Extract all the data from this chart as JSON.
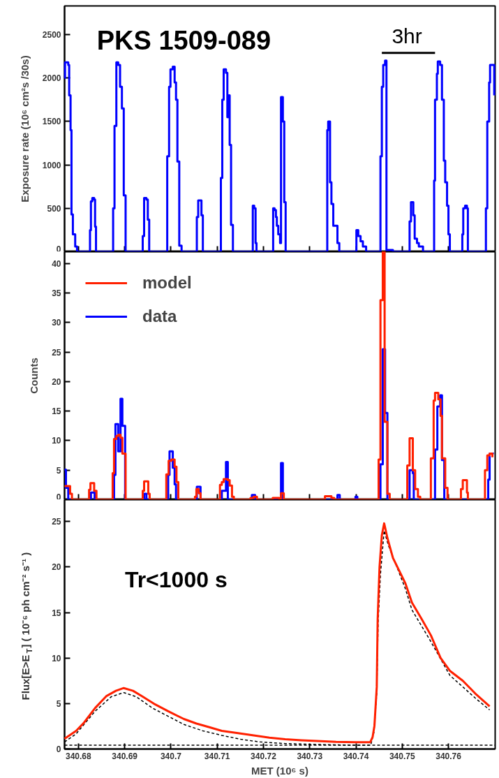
{
  "chart_data": [
    {
      "type": "step",
      "ylabel": "Exposure rate (10⁶ cm²s /30s)",
      "annotations": [
        "PKS 1509-089",
        "3hr"
      ],
      "xlim": [
        340.677,
        340.7701
      ],
      "ylim": [
        0,
        2830
      ],
      "xticks": [
        340.68,
        340.69,
        340.7,
        340.71,
        340.72,
        340.73,
        340.74,
        340.75,
        340.76
      ],
      "yticks": [
        0,
        500,
        1000,
        1500,
        2000,
        2500
      ],
      "tick_labels": "y",
      "grid": false,
      "series": [
        {
          "type": "line",
          "color": "#000000",
          "x": [
            340.7456,
            340.7571
          ],
          "values": [
            2290,
            2290
          ]
        },
        {
          "color": "#0000ff",
          "x": [
            340.677,
            340.6771,
            340.6778,
            340.678,
            340.6783,
            340.6785,
            340.6788,
            340.6793,
            340.6797,
            340.6823,
            340.6825,
            340.6827,
            340.683,
            340.6834,
            340.6836,
            340.6838,
            340.6874,
            340.6875,
            340.6878,
            340.6882,
            340.6886,
            340.689,
            340.6894,
            340.6898,
            340.6902,
            340.6937,
            340.6939,
            340.6942,
            340.6947,
            340.695,
            340.6953,
            340.699,
            340.6992,
            340.6996,
            340.6999,
            340.7004,
            340.7008,
            340.7011,
            340.7014,
            340.7018,
            340.7023,
            340.7054,
            340.7056,
            340.7059,
            340.7064,
            340.7066,
            340.7069,
            340.7106,
            340.7108,
            340.7111,
            340.7114,
            340.7119,
            340.7122,
            340.7125,
            340.7127,
            340.713,
            340.7134,
            340.7175,
            340.7177,
            340.718,
            340.7183,
            340.7185,
            340.722,
            340.7221,
            340.7224,
            340.7227,
            340.7229,
            340.7232,
            340.7236,
            340.7238,
            340.7242,
            340.7245,
            340.7248,
            340.7336,
            340.7338,
            340.734,
            340.7344,
            340.7347,
            340.7351,
            340.7356,
            340.736,
            340.7364,
            340.7398,
            340.7401,
            340.7405,
            340.741,
            340.7415,
            340.7422,
            340.7451,
            340.7453,
            340.7456,
            340.7459,
            340.7463,
            340.7466,
            340.748,
            340.7514,
            340.7516,
            340.7519,
            340.7524,
            340.7527,
            340.7532,
            340.7536,
            340.7545,
            340.7566,
            340.7569,
            340.7571,
            340.7575,
            340.7577,
            340.7582,
            340.7586,
            340.759,
            340.7593,
            340.7597,
            340.76,
            340.7603,
            340.7627,
            340.763,
            340.7632,
            340.7636,
            340.764,
            340.7642,
            340.7679,
            340.7681,
            340.7684,
            340.7688,
            340.769,
            340.7696,
            340.7699
          ],
          "values": [
            2000,
            2180,
            2150,
            1800,
            1400,
            430,
            200,
            60,
            0,
            0,
            250,
            580,
            620,
            600,
            290,
            0,
            0,
            500,
            1450,
            2180,
            2150,
            1900,
            1650,
            650,
            0,
            0,
            180,
            620,
            600,
            370,
            0,
            0,
            1100,
            1900,
            2100,
            2130,
            1950,
            1750,
            1040,
            70,
            0,
            0,
            400,
            590,
            590,
            420,
            0,
            0,
            850,
            1750,
            2100,
            2060,
            1550,
            1800,
            1230,
            310,
            0,
            0,
            530,
            500,
            100,
            0,
            0,
            500,
            480,
            400,
            300,
            200,
            100,
            1780,
            1500,
            570,
            0,
            0,
            1400,
            1500,
            800,
            550,
            300,
            300,
            100,
            0,
            0,
            250,
            180,
            120,
            60,
            0,
            0,
            1100,
            1900,
            2150,
            2200,
            20,
            0,
            0,
            350,
            570,
            420,
            150,
            100,
            60,
            0,
            0,
            820,
            1750,
            2050,
            2190,
            2150,
            1750,
            1050,
            800,
            530,
            200,
            0,
            0,
            200,
            500,
            530,
            500,
            0,
            0,
            500,
            1500,
            1950,
            2150,
            2150,
            1800
          ]
        }
      ]
    },
    {
      "type": "step",
      "ylabel": "Counts",
      "legend": "top left",
      "xlim": [
        340.677,
        340.7701
      ],
      "ylim": [
        0,
        42
      ],
      "xticks": [
        340.68,
        340.69,
        340.7,
        340.71,
        340.72,
        340.73,
        340.74,
        340.75,
        340.76
      ],
      "yticks": [
        0,
        5,
        10,
        15,
        20,
        25,
        30,
        35,
        40
      ],
      "tick_labels": "y",
      "grid": false,
      "series": [
        {
          "name": "data",
          "color": "#0000ff",
          "x": [
            340.677,
            340.6773,
            340.6778,
            340.6827,
            340.6835,
            340.6877,
            340.688,
            340.6886,
            340.6891,
            340.6895,
            340.6901,
            340.6942,
            340.6947,
            340.6994,
            340.6997,
            340.7004,
            340.7008,
            340.7011,
            340.7056,
            340.7064,
            340.711,
            340.7119,
            340.7123,
            340.7175,
            340.7182,
            340.7238,
            340.7242,
            340.736,
            340.7365,
            340.7399,
            340.7403,
            340.7453,
            340.7458,
            340.7463,
            340.7468,
            340.7516,
            340.7523,
            340.7525,
            340.7571,
            340.7576,
            340.7582,
            340.7586,
            340.7591,
            340.7686,
            340.7689,
            340.7696
          ],
          "values": [
            5.1,
            2,
            0,
            1.2,
            0,
            4.2,
            12.8,
            8.2,
            17.1,
            12.5,
            0,
            1,
            0,
            4.2,
            8.2,
            5.4,
            2.6,
            0,
            2.2,
            0,
            1.5,
            6.4,
            0,
            0.8,
            0,
            6.2,
            0,
            0.8,
            0,
            0.5,
            0,
            6,
            25.5,
            14.7,
            0,
            5,
            4.5,
            0,
            8.5,
            15.8,
            17.7,
            6.7,
            0,
            3.4,
            7.8,
            8
          ]
        },
        {
          "name": "model",
          "color": "#ff2000",
          "x": [
            340.677,
            340.6782,
            340.6786,
            340.6823,
            340.6826,
            340.6834,
            340.6839,
            340.6874,
            340.6877,
            340.6882,
            340.6886,
            340.6891,
            340.6895,
            340.6902,
            340.6939,
            340.6942,
            340.6951,
            340.6954,
            340.699,
            340.6995,
            340.7001,
            340.7008,
            340.7012,
            340.7016,
            340.7052,
            340.7055,
            340.706,
            340.7064,
            340.7106,
            340.711,
            340.7114,
            340.7123,
            340.7127,
            340.7132,
            340.7136,
            340.7172,
            340.7179,
            340.7186,
            340.722,
            340.7234,
            340.7238,
            340.7244,
            340.7333,
            340.7347,
            340.7353,
            340.7449,
            340.7453,
            340.7458,
            340.7462,
            340.7468,
            340.7473,
            340.7511,
            340.7516,
            340.7523,
            340.7528,
            340.7534,
            340.7539,
            340.7562,
            340.7568,
            340.7571,
            340.7578,
            340.7583,
            340.7586,
            340.7593,
            340.7598,
            340.7627,
            340.7631,
            340.764,
            340.7642,
            340.7679,
            340.7684,
            340.7689,
            340.7695
          ],
          "values": [
            2.3,
            1,
            0,
            1.7,
            2.8,
            1.5,
            0,
            4.5,
            10.3,
            10.8,
            11,
            10.5,
            7.8,
            0,
            1.5,
            3.1,
            1,
            0,
            4.3,
            6.6,
            6.8,
            5.6,
            3,
            0,
            0.5,
            1.8,
            1.1,
            0,
            2.5,
            3,
            3.5,
            3.3,
            2.4,
            0.5,
            0,
            0.3,
            0.5,
            0,
            0.3,
            0.2,
            1.1,
            0,
            0.6,
            0.3,
            0,
            6.8,
            33.8,
            42,
            13.2,
            1,
            0,
            5.8,
            10.4,
            5,
            1.8,
            0.5,
            0,
            7,
            16.8,
            18.1,
            17,
            14.2,
            7,
            2,
            0,
            1.8,
            3.3,
            1.2,
            0,
            5,
            7.5,
            7.8,
            7.2
          ]
        }
      ]
    },
    {
      "type": "line",
      "xlabel": "MET (10⁶ s)",
      "ylabel": "Flux[E>E$_{T}$] ( 10⁻⁶ ph cm⁻² s⁻¹ )",
      "annotations": [
        "Tr<1000 s"
      ],
      "xlim": [
        340.677,
        340.7701
      ],
      "ylim": [
        0,
        27.4
      ],
      "xticks": [
        340.68,
        340.69,
        340.7,
        340.71,
        340.72,
        340.73,
        340.74,
        340.75,
        340.76
      ],
      "yticks": [
        0,
        5,
        10,
        15,
        20,
        25
      ],
      "grid": false,
      "marker": "none",
      "ref_lines": [
        {
          "axis": "y",
          "value": 0.43,
          "color": "#000000",
          "line_style": "dashed"
        }
      ],
      "series": [
        {
          "color": "#000000",
          "line_style": "dashed",
          "x": [
            340.677,
            340.6795,
            340.6836,
            340.6871,
            340.6898,
            340.6925,
            340.696,
            340.6994,
            340.7028,
            340.7069,
            340.711,
            340.7151,
            340.7192,
            340.7247,
            340.7316,
            340.7384,
            340.7432,
            340.7439,
            340.7445,
            340.7448,
            340.7453,
            340.7461,
            340.747,
            340.7507,
            340.7521,
            340.7562,
            340.7603,
            340.7658,
            340.7689
          ],
          "values": [
            0.78,
            1.67,
            4.15,
            5.75,
            6.2,
            5.75,
            4.5,
            3.6,
            2.7,
            2.0,
            1.5,
            1.07,
            0.78,
            0.6,
            0.5,
            0.43,
            0.43,
            1.85,
            6.1,
            13.9,
            19.2,
            24.0,
            22.4,
            17.6,
            15.3,
            11.8,
            8.1,
            5.6,
            4.3
          ]
        },
        {
          "color": "#ff2000",
          "line_style": "solid",
          "x": [
            340.677,
            340.6795,
            340.6812,
            340.6836,
            340.686,
            340.6881,
            340.6898,
            340.6918,
            340.6939,
            340.6966,
            340.6994,
            340.7028,
            340.7055,
            340.7083,
            340.711,
            340.7145,
            340.7179,
            340.7213,
            340.7247,
            340.7282,
            340.7316,
            340.7357,
            340.7398,
            340.7431,
            340.7436,
            340.744,
            340.7445,
            340.7447,
            340.7451,
            340.7456,
            340.7461,
            340.7468,
            340.748,
            340.7507,
            340.7521,
            340.7542,
            340.7562,
            340.7583,
            340.7603,
            340.7631,
            340.7658,
            340.7689
          ],
          "values": [
            1.14,
            2.0,
            2.9,
            4.5,
            5.8,
            6.4,
            6.7,
            6.4,
            5.75,
            4.9,
            4.15,
            3.3,
            2.8,
            2.4,
            2.0,
            1.75,
            1.5,
            1.25,
            1.07,
            0.96,
            0.89,
            0.78,
            0.75,
            0.75,
            1.31,
            2.56,
            6.82,
            14.3,
            20.0,
            23.5,
            24.8,
            23.2,
            21.0,
            18.2,
            16.1,
            14.3,
            12.5,
            10.0,
            8.6,
            7.5,
            6.1,
            4.7
          ]
        }
      ]
    }
  ]
}
